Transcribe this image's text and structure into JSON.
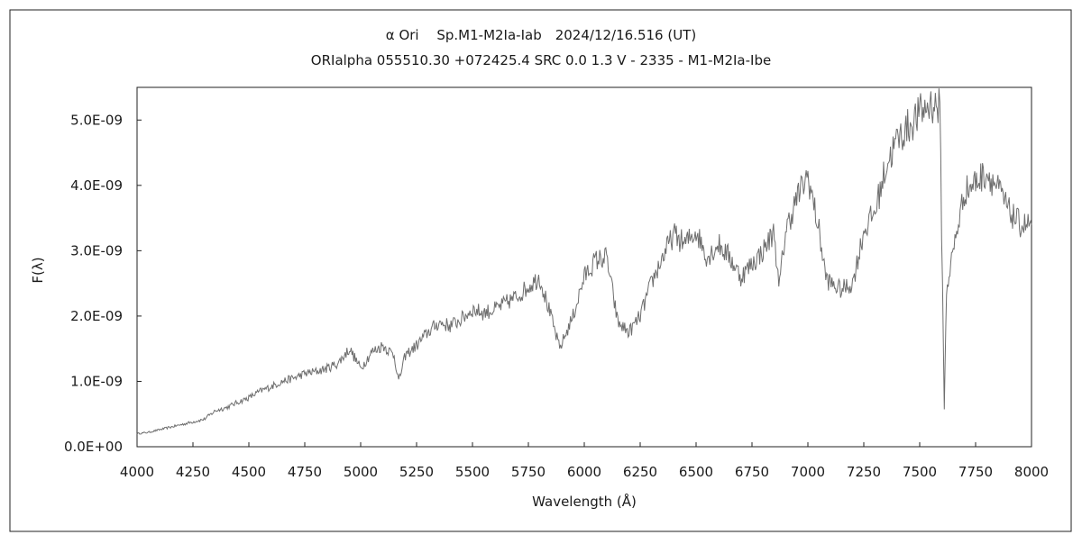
{
  "chart_data": {
    "type": "line",
    "title": "α Ori　 Sp.M1-M2Ia-Iab　2024/12/16.516 (UT)",
    "subtitle": "ORIalpha 055510.30 +072425.4 SRC 0.0 1.3 V - 2335 - M1-M2Ia-Ibe",
    "xlabel": "Wavelength (Å)",
    "ylabel": "F(λ)",
    "xlim": [
      4000,
      8000
    ],
    "ylim": [
      0,
      5.5e-09
    ],
    "xticks": [
      "4000",
      "4250",
      "4500",
      "4750",
      "5000",
      "5250",
      "5500",
      "5750",
      "6000",
      "6250",
      "6500",
      "6750",
      "7000",
      "7250",
      "7500",
      "7750",
      "8000"
    ],
    "yticks": [
      "0.0E+00",
      "1.0E-09",
      "2.0E-09",
      "3.0E-09",
      "4.0E-09",
      "5.0E-09"
    ],
    "grid": false,
    "legend": "none",
    "line_color": "#6e6e6e",
    "series": [
      {
        "x": [
          4000,
          4050,
          4100,
          4150,
          4200,
          4250,
          4300,
          4350,
          4400,
          4450,
          4500,
          4550,
          4600,
          4650,
          4700,
          4750,
          4800,
          4850,
          4900,
          4950,
          5000,
          5050,
          5100,
          5150,
          5170,
          5200,
          5250,
          5300,
          5350,
          5400,
          5450,
          5500,
          5550,
          5600,
          5650,
          5700,
          5750,
          5800,
          5850,
          5890,
          5950,
          6000,
          6050,
          6100,
          6150,
          6200,
          6250,
          6300,
          6350,
          6400,
          6450,
          6500,
          6550,
          6600,
          6650,
          6700,
          6750,
          6800,
          6850,
          6870,
          6900,
          6950,
          7000,
          7050,
          7080,
          7100,
          7150,
          7200,
          7250,
          7300,
          7350,
          7400,
          7450,
          7500,
          7550,
          7590,
          7610,
          7620,
          7650,
          7700,
          7750,
          7800,
          7850,
          7900,
          7950,
          8000
        ],
        "y": [
          2e-10,
          2.2e-10,
          2.6e-10,
          3e-10,
          3.4e-10,
          3.8e-10,
          4.2e-10,
          5.5e-10,
          6e-10,
          6.8e-10,
          7.5e-10,
          8.5e-10,
          9.2e-10,
          1e-09,
          1.05e-09,
          1.12e-09,
          1.15e-09,
          1.2e-09,
          1.28e-09,
          1.5e-09,
          1.2e-09,
          1.45e-09,
          1.55e-09,
          1.4e-09,
          1e-09,
          1.4e-09,
          1.55e-09,
          1.75e-09,
          1.9e-09,
          1.85e-09,
          1.95e-09,
          2.1e-09,
          2.05e-09,
          2.1e-09,
          2.2e-09,
          2.3e-09,
          2.45e-09,
          2.6e-09,
          2e-09,
          1.5e-09,
          2e-09,
          2.6e-09,
          2.85e-09,
          2.9e-09,
          1.9e-09,
          1.75e-09,
          2e-09,
          2.5e-09,
          2.9e-09,
          3.25e-09,
          3.1e-09,
          3.3e-09,
          2.9e-09,
          3.1e-09,
          2.9e-09,
          2.6e-09,
          2.8e-09,
          3e-09,
          3.3e-09,
          2.4e-09,
          3.3e-09,
          3.8e-09,
          4.15e-09,
          3.3e-09,
          2.6e-09,
          2.5e-09,
          2.4e-09,
          2.5e-09,
          3.3e-09,
          3.6e-09,
          4.3e-09,
          4.7e-09,
          4.9e-09,
          5.1e-09,
          5.25e-09,
          5.2e-09,
          6e-10,
          2.4e-09,
          3e-09,
          3.9e-09,
          4.05e-09,
          4.2e-09,
          3.95e-09,
          3.6e-09,
          3.4e-09,
          3.4e-09
        ]
      }
    ]
  }
}
